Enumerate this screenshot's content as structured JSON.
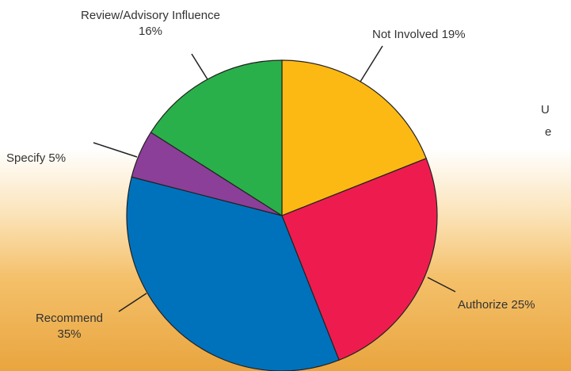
{
  "chart_data": {
    "type": "pie",
    "categories": [
      "Not Involved",
      "Authorize",
      "Recommend",
      "Specify",
      "Review/Advisory Influence"
    ],
    "values": [
      19,
      25,
      35,
      5,
      16
    ],
    "value_labels": [
      "19%",
      "25%",
      "35%",
      "5%",
      "16%"
    ],
    "colors": [
      "#fdb913",
      "#ee1c4e",
      "#0072bc",
      "#8b3f98",
      "#2ab04a"
    ],
    "annotations": [
      "U",
      "e"
    ]
  }
}
